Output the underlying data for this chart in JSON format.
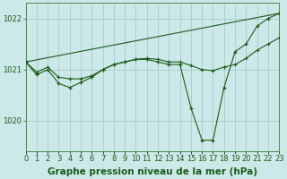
{
  "background_color": "#cce8e8",
  "grid_color": "#aacccc",
  "line_color": "#1a5c1a",
  "marker_color": "#1a5c1a",
  "title": "Graphe pression niveau de la mer (hPa)",
  "xlim": [
    0,
    23
  ],
  "ylim": [
    1019.4,
    1022.3
  ],
  "yticks": [
    1020,
    1021,
    1022
  ],
  "xtick_labels": [
    "0",
    "1",
    "2",
    "3",
    "4",
    "5",
    "6",
    "7",
    "8",
    "9",
    "10",
    "11",
    "12",
    "13",
    "14",
    "15",
    "16",
    "17",
    "18",
    "19",
    "20",
    "21",
    "22",
    "23"
  ],
  "series1_x": [
    0,
    1,
    2,
    3,
    4,
    5,
    6,
    7,
    8,
    9,
    10,
    11,
    12,
    13,
    14,
    15,
    16,
    17,
    18,
    19,
    20,
    21,
    22,
    23
  ],
  "series1_y": [
    1021.15,
    1020.9,
    1021.0,
    1020.73,
    1020.65,
    1020.75,
    1020.85,
    1021.0,
    1021.1,
    1021.15,
    1021.2,
    1021.2,
    1021.15,
    1021.1,
    1021.1,
    1020.25,
    1019.62,
    1019.62,
    1020.65,
    1021.35,
    1021.5,
    1021.85,
    1022.0,
    1022.1
  ],
  "series2_x": [
    0,
    1,
    2,
    3,
    4,
    5,
    6,
    7,
    8,
    9,
    10,
    11,
    12,
    13,
    14,
    15,
    16,
    17,
    18,
    19,
    20,
    21,
    22,
    23
  ],
  "series2_y": [
    1021.15,
    1020.95,
    1021.05,
    1020.85,
    1020.82,
    1020.82,
    1020.88,
    1021.0,
    1021.1,
    1021.15,
    1021.2,
    1021.22,
    1021.2,
    1021.15,
    1021.15,
    1021.08,
    1021.0,
    1020.98,
    1021.05,
    1021.1,
    1021.22,
    1021.38,
    1021.5,
    1021.62
  ],
  "series3_x": [
    0,
    23
  ],
  "series3_y": [
    1021.15,
    1022.1
  ],
  "title_fontsize": 7.5,
  "tick_fontsize": 6.0
}
